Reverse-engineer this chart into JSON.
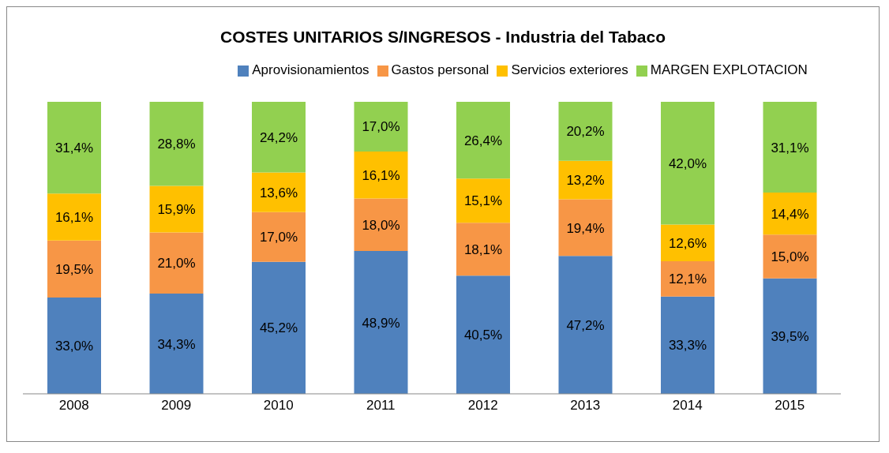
{
  "chart_data": {
    "type": "bar",
    "title": "COSTES UNITARIOS S/INGRESOS - Industria del Tabaco",
    "stacked": true,
    "categories": [
      "2008",
      "2009",
      "2010",
      "2011",
      "2012",
      "2013",
      "2014",
      "2015"
    ],
    "series": [
      {
        "name": "Aprovisionamientos",
        "color": "#4f81bd",
        "values": [
          33.0,
          34.3,
          45.2,
          48.9,
          40.5,
          47.2,
          33.3,
          39.5
        ],
        "value_labels": [
          "33,0%",
          "34,3%",
          "45,2%",
          "48,9%",
          "40,5%",
          "47,2%",
          "33,3%",
          "39,5%"
        ]
      },
      {
        "name": "Gastos personal",
        "color": "#f79646",
        "values": [
          19.5,
          21.0,
          17.0,
          18.0,
          18.1,
          19.4,
          12.1,
          15.0
        ],
        "value_labels": [
          "19,5%",
          "21,0%",
          "17,0%",
          "18,0%",
          "18,1%",
          "19,4%",
          "12,1%",
          "15,0%"
        ]
      },
      {
        "name": "Servicios exteriores",
        "color": "#ffc000",
        "values": [
          16.1,
          15.9,
          13.6,
          16.1,
          15.1,
          13.2,
          12.6,
          14.4
        ],
        "value_labels": [
          "16,1%",
          "15,9%",
          "13,6%",
          "16,1%",
          "15,1%",
          "13,2%",
          "12,6%",
          "14,4%"
        ]
      },
      {
        "name": "MARGEN EXPLOTACION",
        "color": "#92d050",
        "values": [
          31.4,
          28.8,
          24.2,
          17.0,
          26.4,
          20.2,
          42.0,
          31.1
        ],
        "value_labels": [
          "31,4%",
          "28,8%",
          "24,2%",
          "17,0%",
          "26,4%",
          "20,2%",
          "42,0%",
          "31,1%"
        ]
      }
    ],
    "ylim": [
      0,
      100
    ],
    "tick_labels": "x",
    "grid": false,
    "legend": "top"
  }
}
